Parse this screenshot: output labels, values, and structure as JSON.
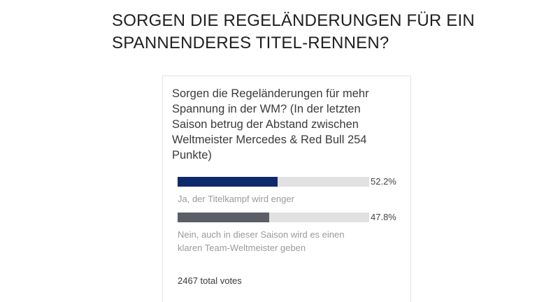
{
  "headline": "SORGEN DIE REGELÄNDERUNGEN FÜR EIN SPANNENDERES TITEL-RENNEN?",
  "poll": {
    "question": "Sorgen die Regeländerungen für mehr Spannung in der WM? (In der letzten Saison betrug der Abstand zwischen Weltmeister Mercedes & Red Bull 254 Punkte)",
    "options": [
      {
        "label": "Ja, der Titelkampf wird enger",
        "percent_text": "52.2%",
        "share": 0.522,
        "color": "#0f2a6b"
      },
      {
        "label": "Nein, auch in dieser Saison wird es einen klaren Team-Weltmeister geben",
        "percent_text": "47.8%",
        "share": 0.478,
        "color": "#5b5e66"
      }
    ],
    "total_votes": "2467 total votes",
    "track_color": "#e1e1e1"
  }
}
